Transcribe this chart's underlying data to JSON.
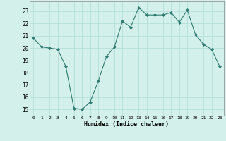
{
  "x": [
    0,
    1,
    2,
    3,
    4,
    5,
    6,
    7,
    8,
    9,
    10,
    11,
    12,
    13,
    14,
    15,
    16,
    17,
    18,
    19,
    20,
    21,
    22,
    23
  ],
  "y": [
    20.8,
    20.1,
    20.0,
    19.9,
    18.5,
    15.1,
    15.0,
    15.6,
    17.3,
    19.3,
    20.1,
    22.2,
    21.7,
    23.3,
    22.7,
    22.7,
    22.7,
    22.9,
    22.1,
    23.1,
    21.1,
    20.3,
    19.9,
    18.5
  ],
  "bg_color": "#d4f0eb",
  "grid_color": "#b0ddd6",
  "line_color": "#2d7a6e",
  "marker_color": "#2d7a6e",
  "xlabel": "Humidex (Indice chaleur)",
  "ylabel_ticks": [
    15,
    16,
    17,
    18,
    19,
    20,
    21,
    22,
    23
  ],
  "xlim": [
    -0.5,
    23.5
  ],
  "ylim": [
    14.5,
    23.8
  ],
  "xticks": [
    0,
    1,
    2,
    3,
    4,
    5,
    6,
    7,
    8,
    9,
    10,
    11,
    12,
    13,
    14,
    15,
    16,
    17,
    18,
    19,
    20,
    21,
    22,
    23
  ],
  "xtick_labels": [
    "0",
    "1",
    "2",
    "3",
    "4",
    "5",
    "6",
    "7",
    "8",
    "9",
    "10",
    "11",
    "12",
    "13",
    "14",
    "15",
    "16",
    "17",
    "18",
    "19",
    "20",
    "21",
    "22",
    "23"
  ]
}
